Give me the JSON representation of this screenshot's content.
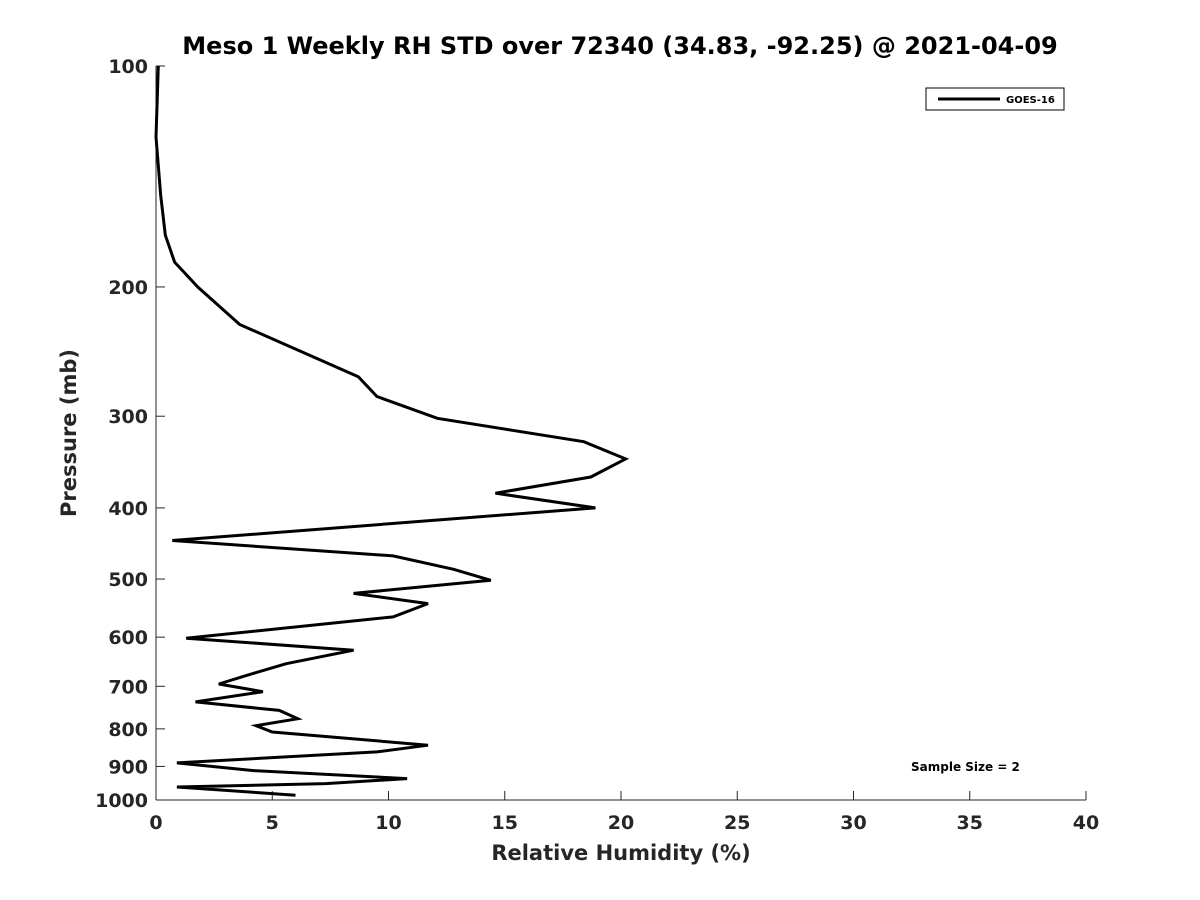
{
  "chart_data": {
    "type": "line",
    "title": "Meso 1 Weekly RH STD over 72340 (34.83, -92.25) @ 2021-04-09",
    "xlabel": "Relative Humidity (%)",
    "ylabel": "Pressure (mb)",
    "xlim": [
      0,
      40
    ],
    "ylim": [
      100,
      1000
    ],
    "yscale": "log",
    "y_reversed": true,
    "x_ticks": [
      0,
      5,
      10,
      15,
      20,
      25,
      30,
      35,
      40
    ],
    "y_ticks": [
      100,
      200,
      300,
      400,
      500,
      600,
      700,
      800,
      900,
      1000
    ],
    "grid": false,
    "legend_position": "top-right",
    "annotation": "Sample Size = 2",
    "series": [
      {
        "name": "GOES-16",
        "color": "#000000",
        "x": [
          0.1,
          0.0,
          0.2,
          0.4,
          0.8,
          1.8,
          3.6,
          8.7,
          9.5,
          12.1,
          18.4,
          20.2,
          18.7,
          14.6,
          18.9,
          0.7,
          10.2,
          12.8,
          14.4,
          8.5,
          11.7,
          10.2,
          1.3,
          8.5,
          5.6,
          4.0,
          2.7,
          4.6,
          1.7,
          5.3,
          6.1,
          4.3,
          5.0,
          11.7,
          9.5,
          0.9,
          4.2,
          10.8,
          7.3,
          0.9,
          6.0
        ],
        "y": [
          100,
          125,
          150,
          170,
          185,
          200,
          225,
          265,
          282,
          302,
          325,
          343,
          363,
          382,
          400,
          443,
          465,
          485,
          502,
          523,
          540,
          563,
          602,
          625,
          652,
          675,
          695,
          712,
          735,
          755,
          775,
          792,
          808,
          842,
          860,
          890,
          912,
          935,
          950,
          960,
          985
        ]
      }
    ]
  }
}
